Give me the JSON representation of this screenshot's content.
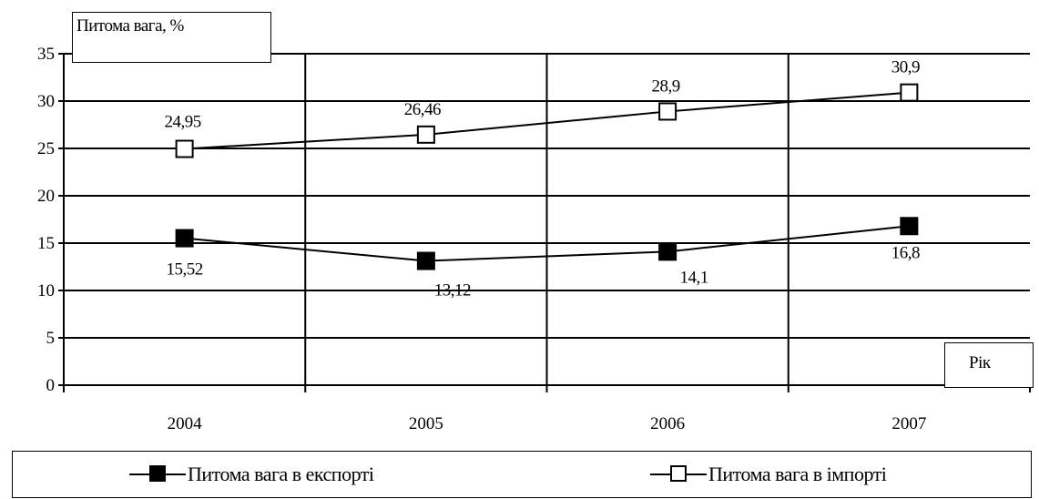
{
  "chart_data": {
    "type": "line",
    "ylabel": "Питома вага, %",
    "xlabel": "Рік",
    "categories": [
      "2004",
      "2005",
      "2006",
      "2007"
    ],
    "ylim": [
      0,
      35
    ],
    "yticks": [
      0,
      5,
      10,
      15,
      20,
      25,
      30,
      35
    ],
    "grid": true,
    "legend_position": "bottom",
    "series": [
      {
        "name": "Питома вага в експорті",
        "values": [
          15.52,
          13.12,
          14.1,
          16.8
        ],
        "labels": [
          "15,52",
          "13,12",
          "14,1",
          "16,8"
        ],
        "marker": "filled-square",
        "color": "#000000"
      },
      {
        "name": "Питома вага в імпорті",
        "values": [
          24.95,
          26.46,
          28.9,
          30.9
        ],
        "labels": [
          "24,95",
          "26,46",
          "28,9",
          "30,9"
        ],
        "marker": "hollow-square",
        "color": "#000000"
      }
    ]
  }
}
